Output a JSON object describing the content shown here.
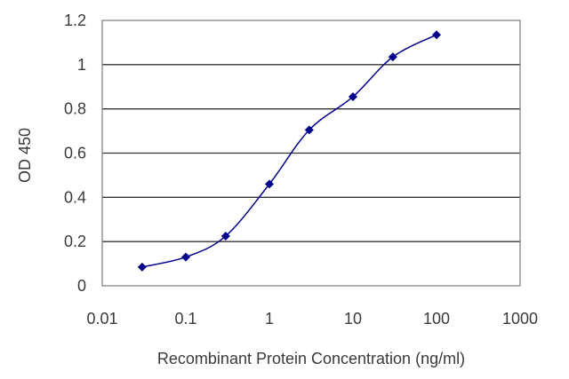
{
  "chart_data": {
    "type": "line",
    "xlabel": "Recombinant Protein Concentration (ng/ml)",
    "ylabel": "OD 450",
    "x_scale": "log",
    "xlim": [
      0.01,
      1000
    ],
    "ylim": [
      0,
      1.2
    ],
    "x_ticks": [
      "0.01",
      "0.1",
      "1",
      "10",
      "100",
      "1000"
    ],
    "y_ticks": [
      "0",
      "0.2",
      "0.4",
      "0.6",
      "0.8",
      "1",
      "1.2"
    ],
    "grid": "horizontal",
    "series": [
      {
        "x": [
          0.03,
          0.1,
          0.3,
          1,
          3,
          10,
          30,
          100
        ],
        "y": [
          0.085,
          0.13,
          0.225,
          0.46,
          0.705,
          0.855,
          1.035,
          1.135
        ],
        "color": "#00008b",
        "marker": "diamond"
      }
    ]
  }
}
